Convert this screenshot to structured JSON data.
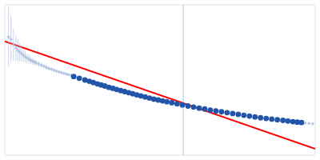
{
  "chart_data": {
    "type": "scatter",
    "tick_labels": false,
    "grid": false,
    "xlim": [
      0.0,
      1.0
    ],
    "ylim": [
      0.05,
      0.75
    ],
    "series": [
      {
        "type": "line",
        "color": "#ff0000",
        "x": [
          0.0,
          1.0
        ],
        "values": [
          0.58,
          0.08
        ]
      },
      {
        "type": "vline",
        "color": "#aaccee",
        "x": [
          0.575
        ]
      },
      {
        "type": "scatter",
        "color": "#aabbdd",
        "x": [
          0.012,
          0.02,
          0.028,
          0.036,
          0.042,
          0.048,
          0.054,
          0.06,
          0.066,
          0.072,
          0.078,
          0.084,
          0.09,
          0.096,
          0.102,
          0.11,
          0.118,
          0.126,
          0.134,
          0.142,
          0.15,
          0.158,
          0.166,
          0.174,
          0.182,
          0.19,
          0.198,
          0.206,
          0.214
        ],
        "values": [
          0.6,
          0.59,
          0.565,
          0.548,
          0.538,
          0.53,
          0.522,
          0.515,
          0.508,
          0.502,
          0.497,
          0.492,
          0.487,
          0.483,
          0.479,
          0.474,
          0.469,
          0.464,
          0.459,
          0.454,
          0.45,
          0.446,
          0.442,
          0.438,
          0.435,
          0.431,
          0.428,
          0.425,
          0.422
        ],
        "errors": [
          0.14,
          0.11,
          0.075,
          0.06,
          0.05,
          0.042,
          0.036,
          0.03,
          0.026,
          0.022,
          0.02,
          0.018,
          0.016,
          0.015,
          0.014,
          0.013,
          0.012,
          0.011,
          0.01,
          0.01,
          0.009,
          0.009,
          0.008,
          0.008,
          0.007,
          0.007,
          0.007,
          0.006,
          0.006
        ]
      },
      {
        "type": "scatter",
        "color": "#2255aa",
        "x": [
          0.222,
          0.24,
          0.258,
          0.272,
          0.285,
          0.298,
          0.31,
          0.322,
          0.335,
          0.348,
          0.36,
          0.373,
          0.386,
          0.399,
          0.412,
          0.425,
          0.438,
          0.452,
          0.466,
          0.48,
          0.494,
          0.508,
          0.522,
          0.538,
          0.555,
          0.572,
          0.59,
          0.608,
          0.626,
          0.644,
          0.662,
          0.68,
          0.698,
          0.716,
          0.734,
          0.752,
          0.77,
          0.788,
          0.806,
          0.824,
          0.842,
          0.86,
          0.878,
          0.896,
          0.912,
          0.928,
          0.942,
          0.956
        ],
        "values": [
          0.416,
          0.408,
          0.4,
          0.394,
          0.388,
          0.382,
          0.377,
          0.372,
          0.366,
          0.361,
          0.356,
          0.351,
          0.346,
          0.341,
          0.336,
          0.331,
          0.326,
          0.321,
          0.316,
          0.311,
          0.307,
          0.303,
          0.299,
          0.294,
          0.289,
          0.284,
          0.279,
          0.274,
          0.269,
          0.265,
          0.26,
          0.256,
          0.252,
          0.248,
          0.244,
          0.24,
          0.236,
          0.232,
          0.228,
          0.224,
          0.221,
          0.218,
          0.215,
          0.212,
          0.209,
          0.206,
          0.204,
          0.202
        ]
      },
      {
        "type": "scatter",
        "color": "#aabbdd",
        "x": [
          0.968,
          0.98,
          0.992
        ],
        "values": [
          0.2,
          0.198,
          0.196
        ],
        "errors": [
          0.006,
          0.005,
          0.005
        ]
      }
    ]
  }
}
